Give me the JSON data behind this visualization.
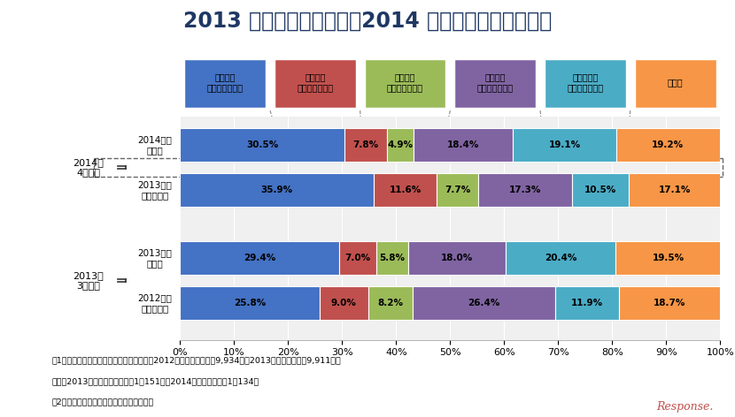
{
  "title": "2013 年度の実績見込み、2014 年度の見通しについて",
  "row_labels": [
    "2012年度\n実績見込み",
    "2013年度\n見通し",
    "2013年度\n実績見込み",
    "2014年度\n見通し"
  ],
  "group_labels": [
    "2013年\n3月調査",
    "2014年\n4月調査"
  ],
  "legend_labels": [
    "増収増益\n（見込み含む）",
    "増収減益\n（見込み含む）",
    "減収増益\n（見込み含む）",
    "減収減益\n（見込み含む）",
    "前年度並み\n（見込み含む）",
    "その他"
  ],
  "data": [
    [
      25.8,
      9.0,
      8.2,
      26.4,
      11.9,
      18.7
    ],
    [
      29.4,
      7.0,
      5.8,
      18.0,
      20.4,
      19.5
    ],
    [
      35.9,
      11.6,
      7.7,
      17.3,
      10.5,
      17.1
    ],
    [
      30.5,
      7.8,
      4.9,
      18.4,
      19.1,
      19.2
    ]
  ],
  "colors": [
    "#4472C4",
    "#C0504D",
    "#9BBB59",
    "#8064A2",
    "#4BACC6",
    "#F79646"
  ],
  "bar_height": 0.6,
  "xlim": [
    0,
    100
  ],
  "xtick_labels": [
    "0%",
    "10%",
    "20%",
    "30%",
    "40%",
    "50%",
    "60%",
    "70%",
    "80%",
    "90%",
    "100%"
  ],
  "xtick_values": [
    0,
    10,
    20,
    30,
    40,
    50,
    60,
    70,
    80,
    90,
    100
  ],
  "footnote1": "注1：母数は「分からない／不回答」を除く2012年度実績見込みが9,934社、2013年度見通しが同9,911社、",
  "footnote2": "　　　2013年度実績見込みが同1万151社、2014年度見通しが同1万134社",
  "footnote3": "注2：業績は、売上高および経常利益ベース",
  "background_color": "#FFFFFF",
  "title_color": "#1F3864",
  "title_fontsize": 17
}
